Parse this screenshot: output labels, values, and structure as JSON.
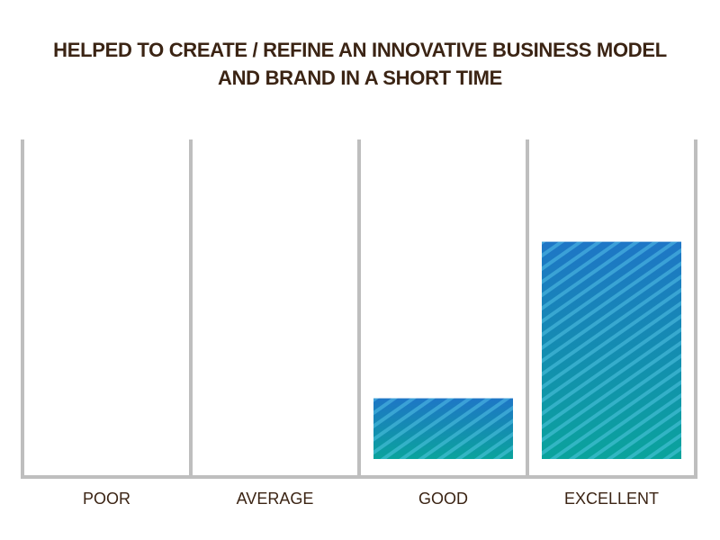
{
  "chart_data": {
    "type": "bar",
    "title": "HELPED TO CREATE / REFINE AN INNOVATIVE BUSINESS MODEL AND BRAND IN A SHORT TIME",
    "title_lines": [
      "HELPED TO CREATE / REFINE AN INNOVATIVE BUSINESS MODEL",
      "AND BRAND IN A SHORT TIME"
    ],
    "categories": [
      "POOR",
      "AVERAGE",
      "GOOD",
      "EXCELLENT"
    ],
    "values": [
      0,
      0,
      19,
      68
    ],
    "xlabel": "",
    "ylabel": "",
    "ylim": [
      0,
      100
    ],
    "grid": true,
    "colors": {
      "bar_top": "#1e76c6",
      "bar_bottom": "#0aa39c",
      "stripe": "#4fc3e8",
      "grid": "#bebebe",
      "text": "#3b2414"
    }
  }
}
